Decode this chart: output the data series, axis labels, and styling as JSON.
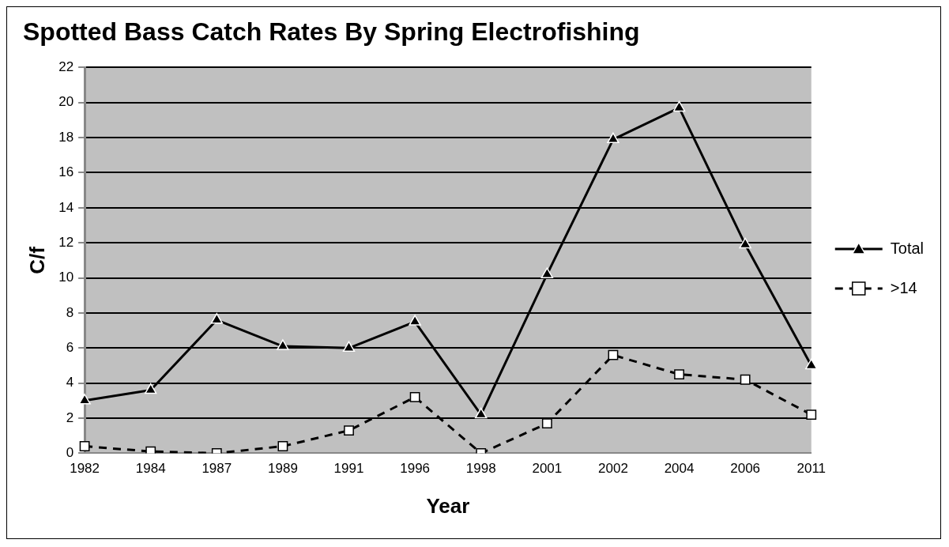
{
  "chart_data": {
    "type": "line",
    "title": "Spotted Bass Catch Rates By Spring Electrofishing",
    "xlabel": "Year",
    "ylabel": "C/f",
    "categories": [
      "1982",
      "1984",
      "1987",
      "1989",
      "1991",
      "1996",
      "1998",
      "2001",
      "2002",
      "2004",
      "2006",
      "2011"
    ],
    "series": [
      {
        "name": "Total",
        "color": "#000000",
        "marker": "triangle",
        "line_style": "solid",
        "values": [
          3.0,
          3.6,
          7.6,
          6.1,
          6.0,
          7.5,
          2.2,
          10.2,
          17.9,
          19.7,
          11.9,
          5.0
        ]
      },
      {
        "name": ">14",
        "color": "#000000",
        "marker": "square",
        "line_style": "dashed",
        "values": [
          0.4,
          0.1,
          0,
          0.4,
          1.3,
          3.2,
          0,
          1.7,
          5.6,
          4.5,
          4.2,
          2.2
        ]
      }
    ],
    "ylim": [
      0,
      22
    ],
    "yticks": [
      0,
      2,
      4,
      6,
      8,
      10,
      12,
      14,
      16,
      18,
      20,
      22
    ],
    "grid": "y",
    "legend": "right"
  }
}
